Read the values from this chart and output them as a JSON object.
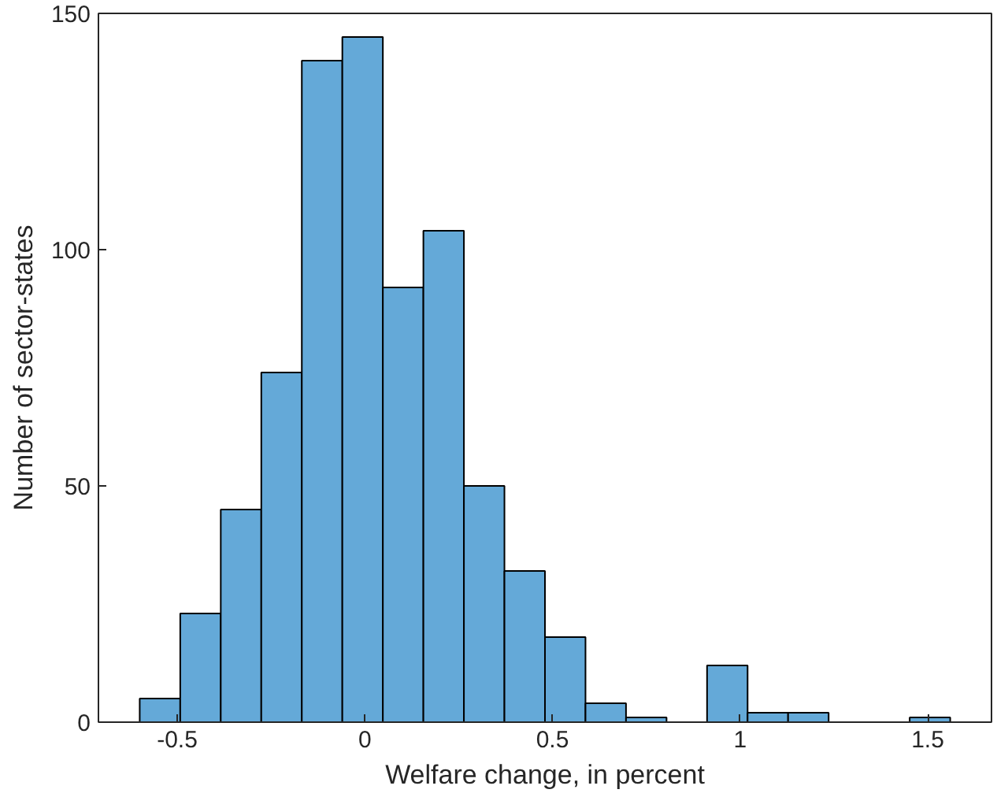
{
  "chart_data": {
    "type": "histogram",
    "xlabel": "Welfare change, in percent",
    "ylabel": "Number of sector-states",
    "bins": [
      -0.6,
      -0.492,
      -0.384,
      -0.276,
      -0.168,
      -0.06,
      0.048,
      0.156,
      0.264,
      0.372,
      0.48,
      0.588,
      0.696,
      0.804,
      0.912,
      1.02,
      1.128,
      1.236,
      1.344,
      1.452,
      1.56
    ],
    "values": [
      5,
      23,
      45,
      74,
      140,
      145,
      92,
      104,
      50,
      32,
      18,
      4,
      1,
      0,
      12,
      2,
      2,
      0,
      0,
      1
    ],
    "color": "#64a9d8",
    "xlim": [
      -0.71,
      1.67
    ],
    "xticks": [
      -0.5,
      0,
      0.5,
      1,
      1.5
    ],
    "ylim": [
      0,
      150
    ],
    "yticks": [
      0,
      50,
      100,
      150
    ],
    "grid": false
  }
}
